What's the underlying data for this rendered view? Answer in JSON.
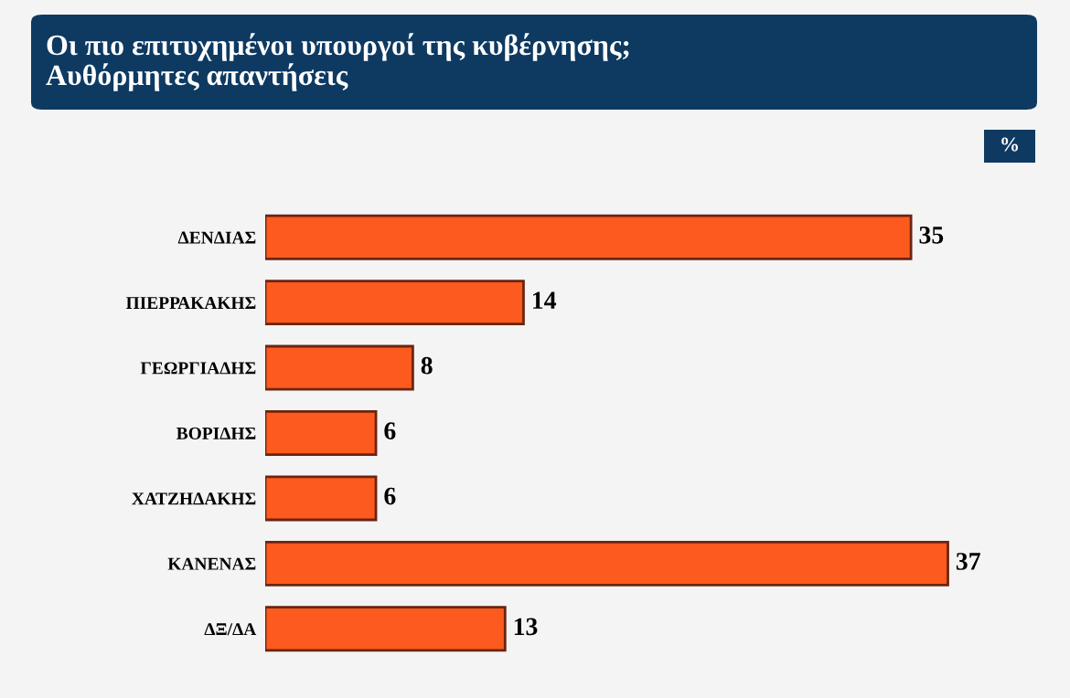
{
  "chart_data": {
    "type": "bar",
    "orientation": "horizontal",
    "title": "Οι πιο επιτυχημένοι υπουργοί της κυβέρνησης;\nΑυθόρμητες απαντήσεις",
    "categories": [
      "ΔΕΝΔΙΑΣ",
      "ΠΙΕΡΡΑΚΑΚΗΣ",
      "ΓΕΩΡΓΙΑΔΗΣ",
      "ΒΟΡΙΔΗΣ",
      "ΧΑΤΖΗΔΑΚΗΣ",
      "ΚΑΝΕΝΑΣ",
      "ΔΞ/ΔΑ"
    ],
    "values": [
      35,
      14,
      8,
      6,
      6,
      37,
      13
    ],
    "color": "#fc5a1e",
    "tick_labels": "y",
    "data_labels": true,
    "grid": false,
    "legend": false,
    "annotations": [
      "%"
    ]
  }
}
